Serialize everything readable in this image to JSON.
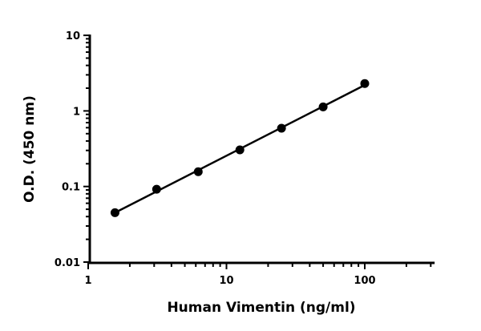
{
  "chart_data": {
    "type": "scatter",
    "title": "",
    "xlabel": "Human Vimentin (ng/ml)",
    "ylabel": "O.D. (450 nm)",
    "xscale": "log",
    "yscale": "log",
    "xlim": [
      1,
      320
    ],
    "ylim": [
      0.01,
      10
    ],
    "xticks": [
      1,
      10,
      100
    ],
    "xtick_labels": [
      "1",
      "10",
      "100"
    ],
    "yticks": [
      0.01,
      0.1,
      1,
      10
    ],
    "ytick_labels": [
      "0.01",
      "0.1",
      "1",
      "10"
    ],
    "grid": false,
    "fit_line": true,
    "marker_color": "#000000",
    "series": [
      {
        "x": [
          1.5625,
          3.125,
          6.25,
          12.5,
          25,
          50,
          100
        ],
        "y": [
          0.045,
          0.092,
          0.157,
          0.305,
          0.59,
          1.13,
          2.3
        ]
      }
    ]
  }
}
